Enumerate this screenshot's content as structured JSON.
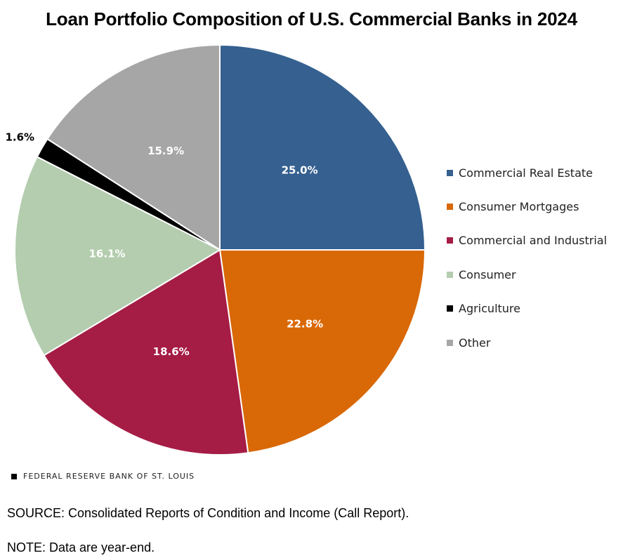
{
  "chart_data": {
    "type": "pie",
    "title": "Loan Portfolio Composition of U.S. Commercial Banks in 2024",
    "slices": [
      {
        "label": "Commercial Real Estate",
        "value": 25.0,
        "value_label": "25.0%",
        "color": "#356090"
      },
      {
        "label": "Consumer Mortgages",
        "value": 22.8,
        "value_label": "22.8%",
        "color": "#D96807"
      },
      {
        "label": "Commercial and Industrial",
        "value": 18.6,
        "value_label": "18.6%",
        "color": "#A51C45"
      },
      {
        "label": "Consumer",
        "value": 16.1,
        "value_label": "16.1%",
        "color": "#B3CDAE"
      },
      {
        "label": "Agriculture",
        "value": 1.6,
        "value_label": "1.6%",
        "color": "#000000"
      },
      {
        "label": "Other",
        "value": 15.9,
        "value_label": "15.9%",
        "color": "#A6A6A6"
      }
    ],
    "start": "12 o'clock",
    "direction": "clockwise",
    "legend_position": "right"
  },
  "branding": {
    "text": "FEDERAL RESERVE BANK OF ST. LOUIS"
  },
  "notes": {
    "source": "SOURCE: Consolidated Reports of Condition and Income (Call Report).",
    "note": "NOTE: Data are year-end."
  }
}
